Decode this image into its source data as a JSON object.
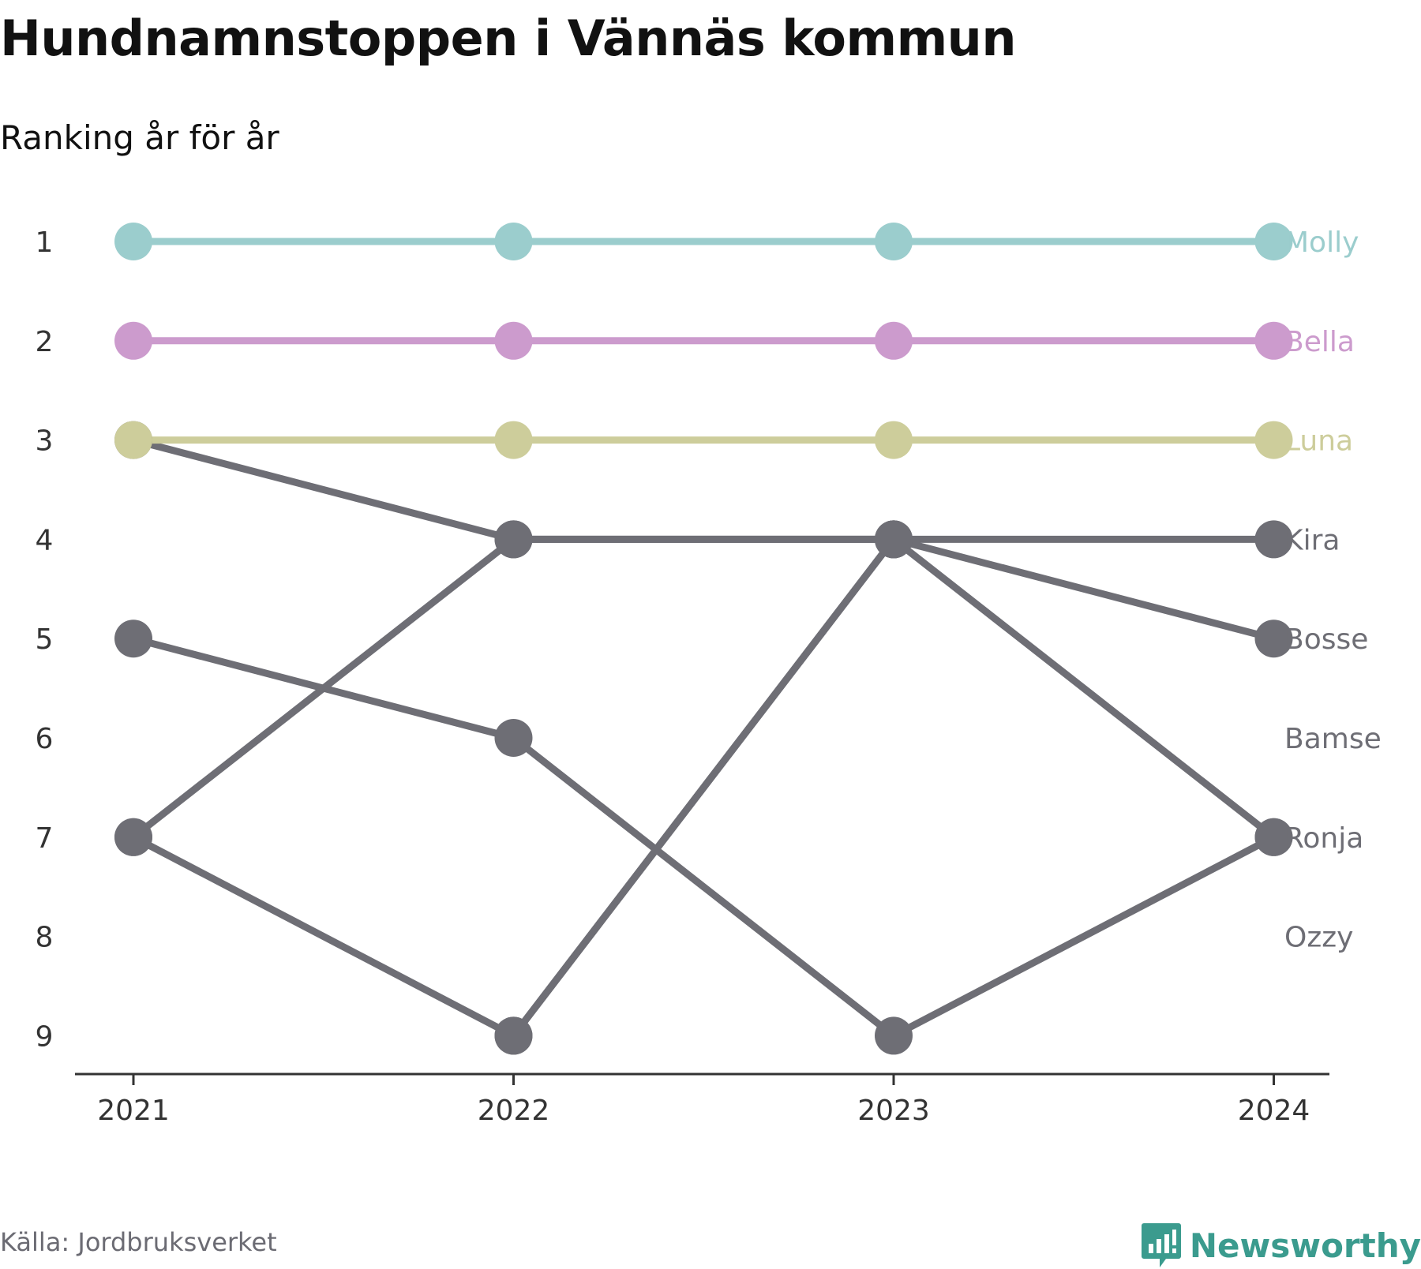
{
  "title": "Hundnamnstoppen i Vännäs kommun",
  "subtitle": "Ranking år för år",
  "source": "Källa: Jordbruksverket",
  "brand": "Newsworthy",
  "colors": {
    "Molly": "#9bcdcd",
    "Bella": "#cc9bcd",
    "Luna": "#cdcd9b",
    "other": "#6e6e75",
    "axis": "#333333",
    "brand": "#3b9b8e"
  },
  "chart_data": {
    "type": "line",
    "x": [
      "2021",
      "2022",
      "2023",
      "2024"
    ],
    "ylim": [
      1,
      9
    ],
    "y_ticks": [
      "1",
      "2",
      "3",
      "4",
      "5",
      "6",
      "7",
      "8",
      "9"
    ],
    "y_inverted": true,
    "series": [
      {
        "name": "Molly",
        "color_key": "Molly",
        "values": [
          1,
          1,
          1,
          1
        ]
      },
      {
        "name": "Bella",
        "color_key": "Bella",
        "values": [
          2,
          2,
          2,
          2
        ]
      },
      {
        "name": "Luna",
        "color_key": "Luna",
        "values": [
          3,
          3,
          3,
          3
        ]
      },
      {
        "name": "Kira",
        "color_key": "other",
        "values": [
          7,
          4,
          4,
          4
        ]
      },
      {
        "name": "Bosse",
        "color_key": "other",
        "values": [
          3,
          4,
          4,
          5
        ]
      },
      {
        "name": "Bamse",
        "color_key": "other",
        "values": [
          null,
          9,
          4,
          null
        ]
      },
      {
        "name": "Ronja",
        "color_key": "other",
        "values": [
          5,
          6,
          9,
          7
        ]
      },
      {
        "name": "Ozzy",
        "color_key": "other",
        "values": [
          7,
          9,
          4,
          7
        ]
      }
    ],
    "end_labels": [
      {
        "text": "Molly",
        "rank": 1,
        "color_key": "Molly"
      },
      {
        "text": "Bella",
        "rank": 2,
        "color_key": "Bella"
      },
      {
        "text": "Luna",
        "rank": 3,
        "color_key": "Luna"
      },
      {
        "text": "Kira",
        "rank": 4,
        "color_key": "other"
      },
      {
        "text": "Bosse",
        "rank": 5,
        "color_key": "other"
      },
      {
        "text": "Bamse",
        "rank": 6,
        "color_key": "other"
      },
      {
        "text": "Ronja",
        "rank": 7,
        "color_key": "other"
      },
      {
        "text": "Ozzy",
        "rank": 8,
        "color_key": "other"
      }
    ]
  }
}
